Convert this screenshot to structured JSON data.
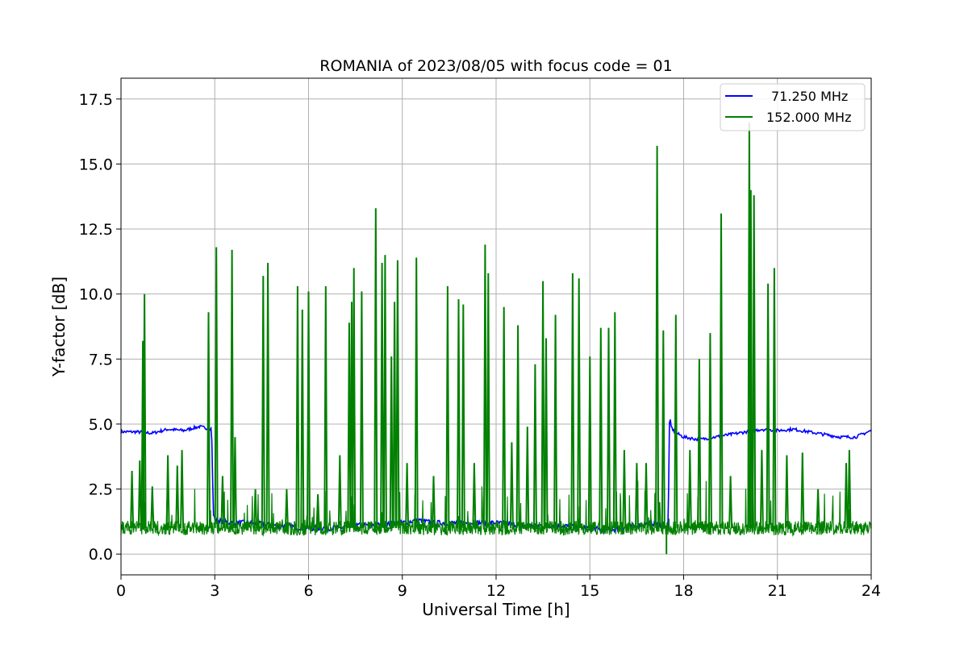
{
  "chart_data": {
    "type": "line",
    "title": "ROMANIA of 2023/08/05 with focus code = 01",
    "xlabel": "Universal Time [h]",
    "ylabel": "Y-factor [dB]",
    "xlim": [
      0,
      24
    ],
    "ylim": [
      -0.8,
      18.3
    ],
    "grid": true,
    "legend_position": "top-right",
    "x_ticks": [
      "0",
      "3",
      "6",
      "9",
      "12",
      "15",
      "18",
      "21",
      "24"
    ],
    "y_ticks": [
      "0.0",
      "2.5",
      "5.0",
      "7.5",
      "10.0",
      "12.5",
      "15.0",
      "17.5"
    ],
    "series": [
      {
        "name": "71.250 MHz",
        "color": "#0000ff",
        "x": [
          0,
          0.5,
          1.0,
          1.5,
          2.0,
          2.5,
          2.9,
          2.95,
          3.0,
          3.5,
          4.0,
          5.0,
          6.0,
          7.0,
          7.5,
          8.0,
          9.0,
          9.5,
          10.0,
          11.0,
          12.0,
          13.0,
          14.0,
          15.0,
          15.5,
          16.0,
          17.0,
          17.4,
          17.5,
          17.55,
          17.6,
          17.7,
          18.0,
          18.5,
          19.0,
          19.5,
          20.0,
          20.5,
          21.0,
          21.5,
          22.0,
          22.5,
          23.0,
          23.5,
          24.0
        ],
        "y": [
          4.7,
          4.7,
          4.65,
          4.8,
          4.75,
          4.9,
          4.8,
          1.6,
          1.3,
          1.2,
          1.2,
          1.1,
          1.0,
          1.0,
          1.1,
          1.1,
          1.2,
          1.3,
          1.2,
          1.2,
          1.2,
          1.1,
          1.1,
          1.0,
          0.9,
          1.0,
          1.2,
          1.1,
          0.9,
          5.3,
          4.9,
          4.7,
          4.5,
          4.4,
          4.5,
          4.6,
          4.7,
          4.8,
          4.75,
          4.8,
          4.7,
          4.6,
          4.5,
          4.5,
          4.75
        ]
      },
      {
        "name": "152.000 MHz",
        "color": "#008000",
        "baseline": 1.0,
        "spikes": [
          {
            "x": 0.7,
            "y": 8.2
          },
          {
            "x": 0.75,
            "y": 10.0
          },
          {
            "x": 0.35,
            "y": 3.2
          },
          {
            "x": 0.6,
            "y": 3.6
          },
          {
            "x": 1.0,
            "y": 2.6
          },
          {
            "x": 1.5,
            "y": 3.8
          },
          {
            "x": 1.8,
            "y": 3.4
          },
          {
            "x": 1.95,
            "y": 4.0
          },
          {
            "x": 2.8,
            "y": 9.3
          },
          {
            "x": 3.05,
            "y": 11.8
          },
          {
            "x": 3.25,
            "y": 3.0
          },
          {
            "x": 3.55,
            "y": 11.7
          },
          {
            "x": 3.65,
            "y": 4.5
          },
          {
            "x": 4.3,
            "y": 2.5
          },
          {
            "x": 4.55,
            "y": 10.7
          },
          {
            "x": 4.7,
            "y": 11.2
          },
          {
            "x": 5.3,
            "y": 2.5
          },
          {
            "x": 5.65,
            "y": 10.3
          },
          {
            "x": 5.8,
            "y": 9.4
          },
          {
            "x": 6.0,
            "y": 10.1
          },
          {
            "x": 6.3,
            "y": 2.3
          },
          {
            "x": 6.55,
            "y": 10.3
          },
          {
            "x": 7.0,
            "y": 3.8
          },
          {
            "x": 7.3,
            "y": 8.9
          },
          {
            "x": 7.38,
            "y": 9.7
          },
          {
            "x": 7.45,
            "y": 11.0
          },
          {
            "x": 7.7,
            "y": 10.1
          },
          {
            "x": 8.15,
            "y": 13.3
          },
          {
            "x": 8.35,
            "y": 11.2
          },
          {
            "x": 8.45,
            "y": 11.5
          },
          {
            "x": 8.65,
            "y": 7.6
          },
          {
            "x": 8.75,
            "y": 9.7
          },
          {
            "x": 8.85,
            "y": 11.3
          },
          {
            "x": 9.15,
            "y": 3.5
          },
          {
            "x": 9.45,
            "y": 11.4
          },
          {
            "x": 10.0,
            "y": 3.0
          },
          {
            "x": 10.45,
            "y": 10.3
          },
          {
            "x": 10.8,
            "y": 9.8
          },
          {
            "x": 10.95,
            "y": 9.6
          },
          {
            "x": 11.3,
            "y": 3.5
          },
          {
            "x": 11.65,
            "y": 11.9
          },
          {
            "x": 11.75,
            "y": 10.8
          },
          {
            "x": 12.25,
            "y": 9.5
          },
          {
            "x": 12.5,
            "y": 4.3
          },
          {
            "x": 12.7,
            "y": 8.8
          },
          {
            "x": 13.0,
            "y": 4.9
          },
          {
            "x": 13.25,
            "y": 7.3
          },
          {
            "x": 13.5,
            "y": 10.5
          },
          {
            "x": 13.6,
            "y": 8.3
          },
          {
            "x": 13.9,
            "y": 9.2
          },
          {
            "x": 14.45,
            "y": 10.8
          },
          {
            "x": 14.65,
            "y": 10.6
          },
          {
            "x": 15.0,
            "y": 7.6
          },
          {
            "x": 15.35,
            "y": 8.7
          },
          {
            "x": 15.6,
            "y": 8.7
          },
          {
            "x": 15.8,
            "y": 9.3
          },
          {
            "x": 16.1,
            "y": 4.0
          },
          {
            "x": 16.5,
            "y": 3.5
          },
          {
            "x": 16.8,
            "y": 3.5
          },
          {
            "x": 17.15,
            "y": 15.7
          },
          {
            "x": 17.35,
            "y": 8.6
          },
          {
            "x": 17.75,
            "y": 9.2
          },
          {
            "x": 18.2,
            "y": 4.0
          },
          {
            "x": 18.5,
            "y": 7.5
          },
          {
            "x": 18.85,
            "y": 8.5
          },
          {
            "x": 19.2,
            "y": 13.1
          },
          {
            "x": 19.5,
            "y": 3.0
          },
          {
            "x": 20.1,
            "y": 16.6
          },
          {
            "x": 20.15,
            "y": 14.0
          },
          {
            "x": 20.25,
            "y": 13.8
          },
          {
            "x": 20.5,
            "y": 4.0
          },
          {
            "x": 20.7,
            "y": 10.4
          },
          {
            "x": 20.9,
            "y": 11.0
          },
          {
            "x": 21.3,
            "y": 3.8
          },
          {
            "x": 21.8,
            "y": 3.9
          },
          {
            "x": 22.3,
            "y": 2.5
          },
          {
            "x": 23.2,
            "y": 3.5
          },
          {
            "x": 23.3,
            "y": 4.0
          }
        ],
        "dips": [
          {
            "x": 17.45,
            "y": 0.0
          }
        ]
      }
    ]
  }
}
